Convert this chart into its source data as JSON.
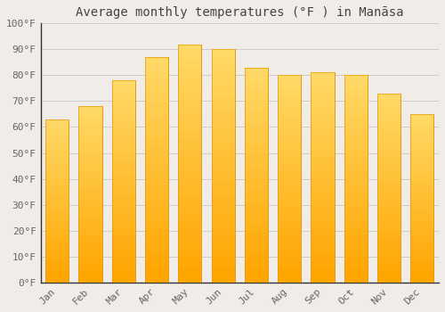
{
  "title": "Average monthly temperatures (°F ) in Manāsa",
  "months": [
    "Jan",
    "Feb",
    "Mar",
    "Apr",
    "May",
    "Jun",
    "Jul",
    "Aug",
    "Sep",
    "Oct",
    "Nov",
    "Dec"
  ],
  "values": [
    63,
    68,
    78,
    87,
    92,
    90,
    83,
    80,
    81,
    80,
    73,
    65
  ],
  "bar_color_top": "#FFD966",
  "bar_color_bottom": "#FFA500",
  "bar_edge_color": "#E8950A",
  "background_color": "#F0EDE8",
  "plot_bg_color": "#F0EDE8",
  "ylim": [
    0,
    100
  ],
  "yticks": [
    0,
    10,
    20,
    30,
    40,
    50,
    60,
    70,
    80,
    90,
    100
  ],
  "ytick_labels": [
    "0°F",
    "10°F",
    "20°F",
    "30°F",
    "40°F",
    "50°F",
    "60°F",
    "70°F",
    "80°F",
    "90°F",
    "100°F"
  ],
  "grid_color": "#CCCCCC",
  "title_fontsize": 10,
  "tick_fontsize": 8,
  "font_family": "monospace",
  "tick_color": "#666666",
  "spine_color": "#333333"
}
